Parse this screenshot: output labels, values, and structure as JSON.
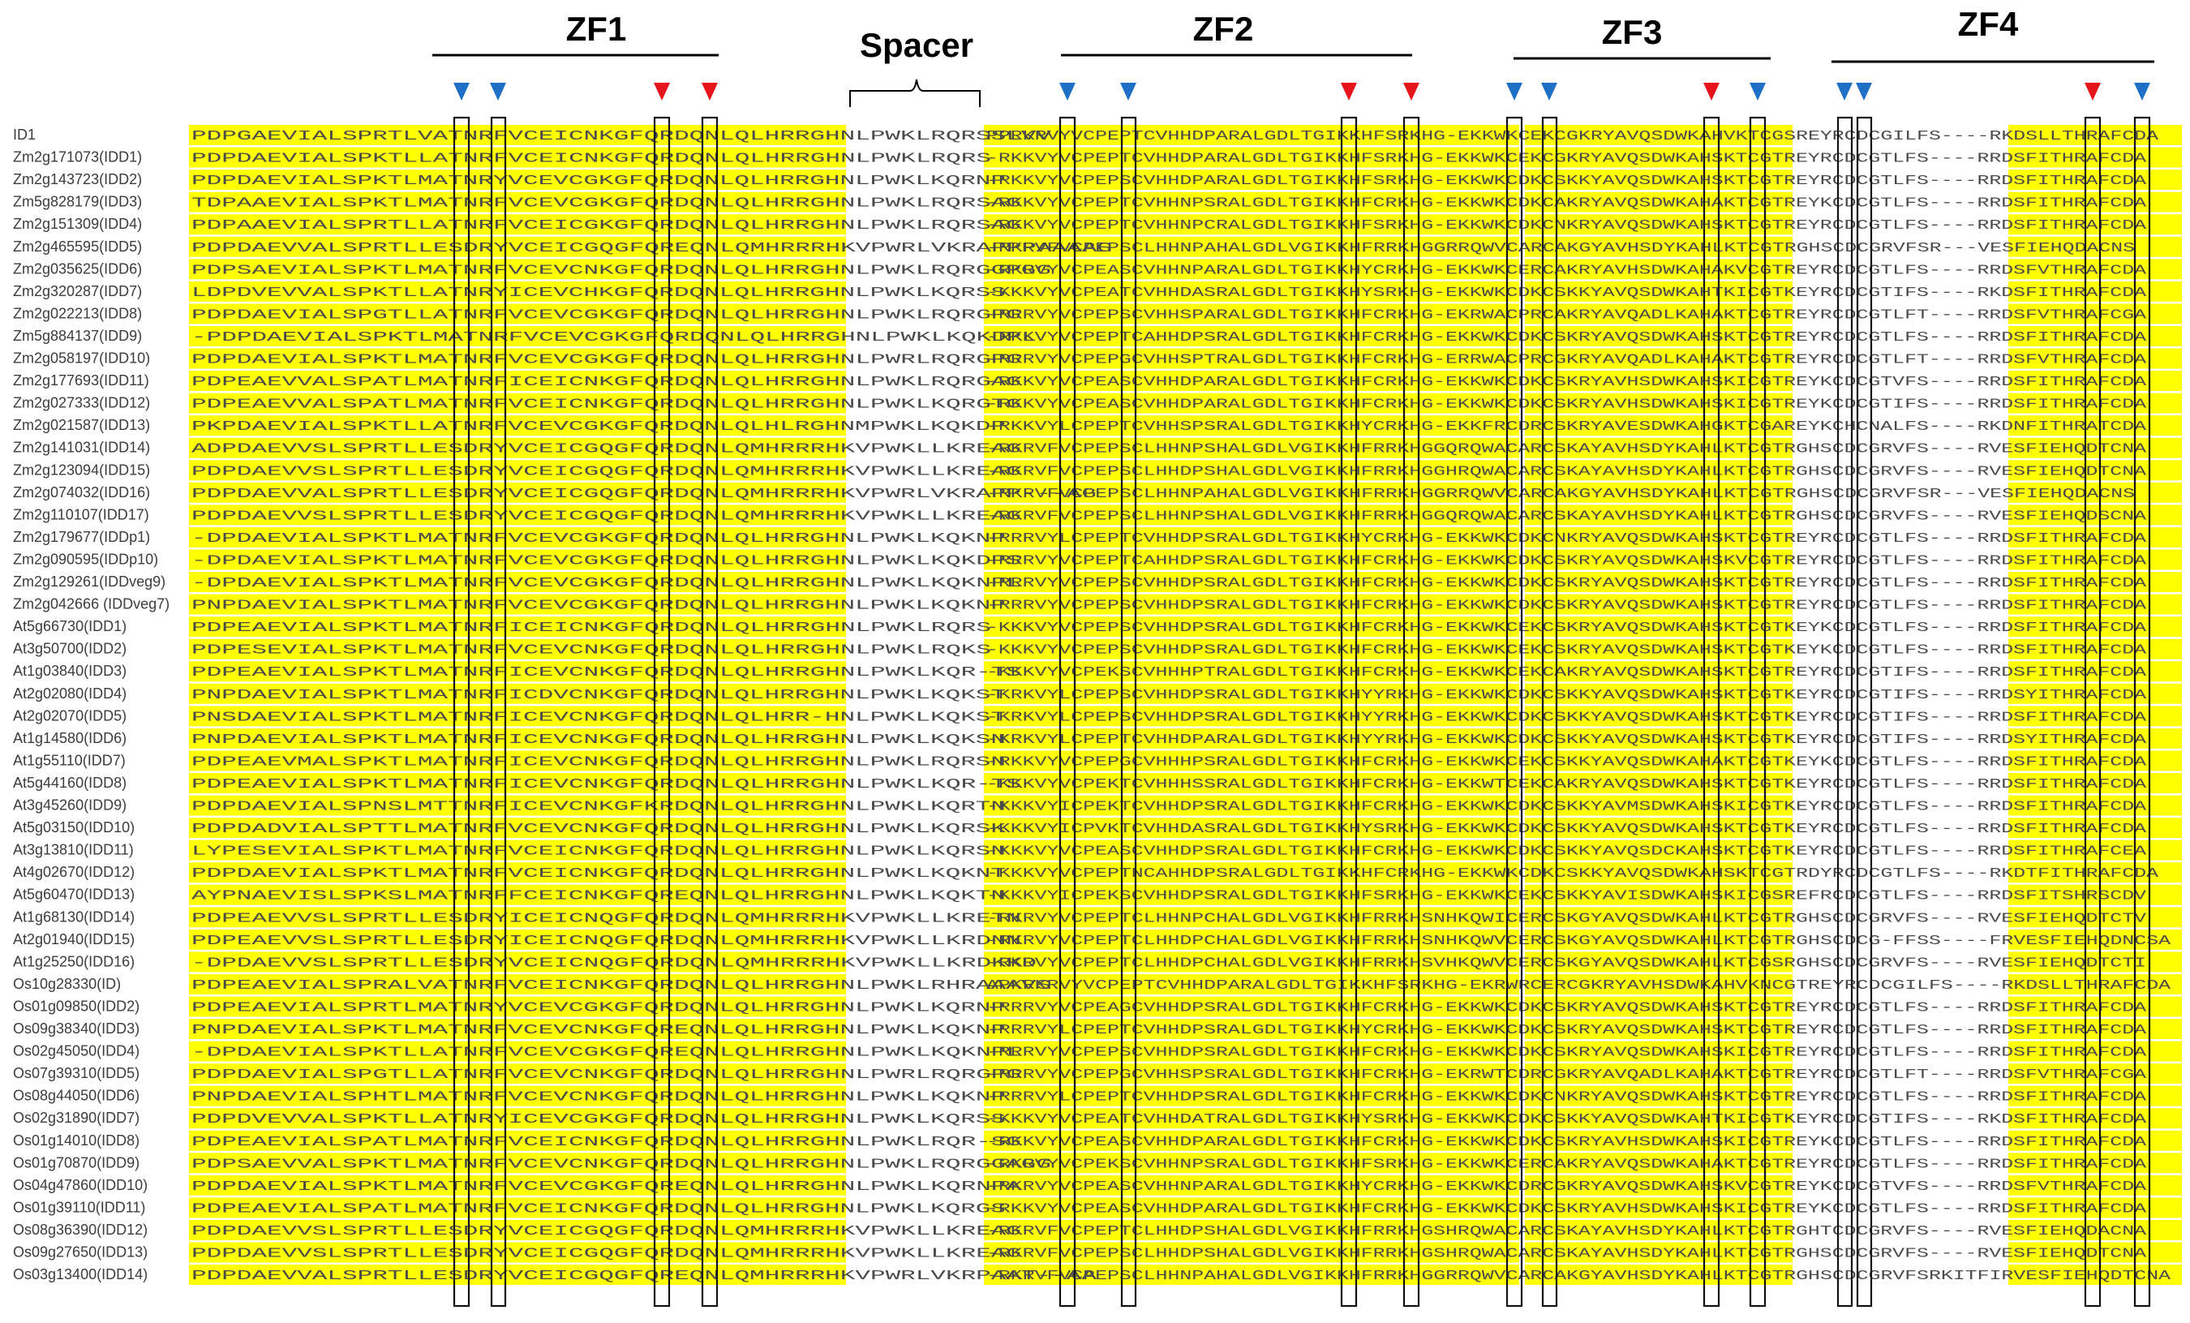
{
  "regions": [
    {
      "name": "ZF1"
    },
    {
      "name": "ZF2"
    },
    {
      "name": "ZF3"
    },
    {
      "name": "ZF4"
    }
  ],
  "spacer_label": "Spacer",
  "colors": {
    "highlight": "#ffff00",
    "arrow_blue": "#1f6fc5",
    "arrow_red": "#e8141b",
    "box": "#111111",
    "text": "#4a4a4a"
  },
  "arrow_colors": [
    "blue",
    "blue",
    "red",
    "red",
    "blue",
    "blue",
    "red",
    "red",
    "blue",
    "blue",
    "red",
    "blue",
    "blue",
    "blue",
    "red",
    "blue"
  ],
  "sequences": [
    {
      "id": "ID1",
      "seg1": "PDPGAEVIALSPRTLVATNRFVCEICNKGFQRDQNLQLHRRGHNLPWKLRQRSSLVV",
      "seg2": "PPRKRVYVCPEPTCVHHDPARALGDLTGIKKHFSRKHG-EKKWKCEKCGKRYAVQSDWKAHVKTCGSREYRCDCGILFS----RKDSLLTHRAFCDA"
    },
    {
      "id": "Zm2g171073(IDD1)",
      "seg1": "PDPDAEVIALSPKTLLATNRFVCEICNKGFQRDQNLQLHRRGHNLPWKLRQRS",
      "seg2": "-RKKVYVCPEPTCVHHDPARALGDLTGIKKHFSRKHG-EKKWKCEKCGKRYAVQSDWKAHSKTCGTREYRCDCGTLFS----RRDSFITHRAFCDA"
    },
    {
      "id": "Zm2g143723(IDD2)",
      "seg1": "PDPDAEVIALSPKTLMATNRYVCEVCGKGFQRDQNLQLHRRGHNLPWKLKQRNP",
      "seg2": "-RKKVYVCPEPSCVHHDPARALGDLTGIKKHFSRKHG-EKKWKCDKCSKKYAVQSDWKAHSKTCGTREYRCDCGTLFS----RRDSFITHRAFCDA"
    },
    {
      "id": "Zm5g828179(IDD3)",
      "seg1": "TDPAAEVIALSPKTLMATNRFVCEVCGKGFQRDQNLQLHRRGHNLPWKLRQRSAG",
      "seg2": "-RKKVYVCPEPTCVHHNPSRALGDLTGIKKHFCRKHG-EKKWKCDKCAKRYAVQSDWKAHAKTCGTREYKCDCGTLFS----RRDSFITHRAFCDA"
    },
    {
      "id": "Zm2g151309(IDD4)",
      "seg1": "PDPAAEVIALSPRTLLATNRFVCEICGKGFQRDQNLQLHRRGHNLPWKLRQRSAG",
      "seg2": "-RKKVYVCPEPTCVHHNPCRALGDLTGIKKHFSRKHG-EKKWKCDKCNKRYAVQSDWKAHSKTCGTREYRCDCGTLFS----RRDSFITHRAFCDA"
    },
    {
      "id": "Zm2g465595(IDD5)",
      "seg1": "PDPDAEVVALSPRTLLESDRYVCEICGQGFQREQNLQMHRRRHKVPWRLVKRAPPPAAAAG",
      "seg2": "-RKRVFVCPEPSCLHHNPAHALGDLVGIKKHFRRKHGGRRQWVCARCAKGYAVHSDYKAHLKTCGTRGHSCDCGRVFSR---VESFIEHQDACNS"
    },
    {
      "id": "Zm2g035625(IDD6)",
      "seg1": "PDPSAEVIALSPKTLMATNRFVCEVCNKGFQRDQNLQLHRRGHNLPWKLRQRGGPGG",
      "seg2": "-RKRVYVCPEASCVHHNPARALGDLTGIKKHYCRKHG-EKKWKCERCAKRYAVHSDWKAHAKVCGTREYRCDCGTLFS----RRDSFVTHRAFCDA"
    },
    {
      "id": "Zm2g320287(IDD7)",
      "seg1": "LDPDVEVVALSPKTLLATNRYICEVCHKGFQRDQNLQLHRRGHNLPWKLKQRSS",
      "seg2": "-KKKVYVCPEATCVHHDASRALGDLTGIKKHYSRKHG-EKKWKCDKCSKKYAVQSDWKAHTKICGTKEYRCDCGTIFS----RKDSFITHRAFCDA"
    },
    {
      "id": "Zm2g022213(IDD8)",
      "seg1": "PDPDAEVIALSPGTLLATNRFVCEVCGKGFQRDQNLQLHRRGHNLPWKLRQRGPG",
      "seg2": "-RRRVYVCPEPSCVHHSPARALGDLTGIKKHFCRKHG-EKRWACPRCAKRYAVQADLKAHAKTCGTREYRCDCGTLFT----RRDSFVTHRAFCGA"
    },
    {
      "id": "Zm5g884137(IDD9)",
      "seg1": "-PDPDAEVIALSPKTLMATNRFVCEVCGKGFQRDQNLQLHRRGHNLPWKLKQKDPL",
      "seg2": "-RKKVYVCPEPTCAHHDPSRALGDLTGIKKHFCRKHG-EKKWKCDKCSKRYAVQSDWKAHSKTCGTREYRCDCGTLFS----RRDSFITHRAFCDA"
    },
    {
      "id": "Zm2g058197(IDD10)",
      "seg1": "PDPDAEVIALSPKTLMATNRFVCEVCGKGFQRDQNLQLHRRGHNLPWRLRQRGPG",
      "seg2": "-RRRVYVCPEPGCVHHSPTRALGDLTGIKKHFCRKHG-ERRWACPRCGKRYAVQADLKAHAKTCGTREYRCDCGTLFT----RRDSFVTHRAFCDA"
    },
    {
      "id": "Zm2g177693(IDD11)",
      "seg1": "PDPEAEVVALSPATLMATNRFICEICNKGFQRDQNLQLHRRGHNLPWKLRQRGAG",
      "seg2": "-RKKVYVCPEASCVHHDPARALGDLTGIKKHFCRKHG-EKKWKCDKCSKRYAVHSDWKAHSKICGTREYKCDCGTVFS----RRDSFITHRAFCDA"
    },
    {
      "id": "Zm2g027333(IDD12)",
      "seg1": "PDPEAEVVALSPATLMATNRFVCEICNKGFQRDQNLQLHRRGHNLPWKLKQRGTG",
      "seg2": "-RKKVYVCPEASCVHHDPARALGDLTGIKKHFCRKHG-EKKWKCDKCSKRYAVHSDWKAHSKICGTREYKCDCGTIFS----RRDSFITHRAFCDA"
    },
    {
      "id": "Zm2g021587(IDD13)",
      "seg1": "PKPDAEVIALSPKTLLATNRFVCEVCGKGFQRDQNLQLHLRGHNMPWKLKQKDP",
      "seg2": "-RKKVYLCPEPTCVHHSPSRALGDLTGIKKHYCRKHG-EKKFRCDRCSKRYAVESDWKAHGKTCGAREYKCHCNALFS----RKDNFITHRATCDA"
    },
    {
      "id": "Zm2g141031(IDD14)",
      "seg1": "ADPDAEVVSLSPRTLLESDRYVCEICGQGFQRDQNLQMHRRRHKVPWKLLKREAG",
      "seg2": "-RKRVFVCPEPSCLHHNPSHALGDLVGIKKHFRRKHGGQRQWACARCSKAYAVHSDYKAHLKTCGTRGHSCDCGRVFS----RVESFIEHQDTCNA"
    },
    {
      "id": "Zm2g123094(IDD15)",
      "seg1": "PDPDAEVVSLSPRTLLESDRYVCEICGQGFQRDQNLQMHRRRHKVPWKLLKREAG",
      "seg2": "-RKRVFVCPEPSCLHHDPSHALGDLVGIKKHFRRKHGGHRQWACARCSKAYAVHSDYKAHLKTCGTRGHSCDCGRVFS----RVESFIEHQDTCNA"
    },
    {
      "id": "Zm2g074032(IDD16)",
      "seg1": "PDPDAEVVALSPRTLLESDRYVCEICGQGFQRDQNLQMHRRRHKVPWRLVKRAPP---AG",
      "seg2": "-RKRVFVCPEPSCLHHNPAHALGDLVGIKKHFRRKHGGRRQWVCARCAKGYAVHSDYKAHLKTCGTRGHSCDCGRVFSR---VESFIEHQDACNS"
    },
    {
      "id": "Zm2g110107(IDD17)",
      "seg1": "PDPDAEVVSLSPRTLLESDRYVCEICGQGFQRDQNLQMHRRRHKVPWKLLKREAG",
      "seg2": "-RKRVFVCPEPSCLHHNPSHALGDLVGIKKHFRRKHGGQRQWACARCSKAYAVHSDYKAHLKTCGTRGHSCDCGRVFS----RVESFIEHQDSCNA"
    },
    {
      "id": "Zm2g179677(IDDp1)",
      "seg1": "-DPDAEVIALSPKTLMATNRFVCEVCGKGFQRDQNLQLHRRGHNLPWKLKQKNP",
      "seg2": "-RRRVYLCPEPTCVHHDPSRALGDLTGIKKHYCRKHG-EKKWKCDKCNKRYAVQSDWKAHSKTCGTREYRCDCGTLFS----RRDSFITHRAFCDA"
    },
    {
      "id": "Zm2g090595(IDDp10)",
      "seg1": "-DPDAEVIALSPKTLMATNRFVCEVCGKGFQRDQNLQLHRRGHNLPWKLKQKDPS",
      "seg2": "-RRRVYVCPEPTCAHHDPSRALGDLTGIKKHFCRKHG-EKKWKCDKCSKRYAVQSDWKAHSKVCGTREYRCDCGTLFS----RRDSFITHRAFCDA"
    },
    {
      "id": "Zm2g129261(IDDveg9)",
      "seg1": "-DPDAEVIALSPKTLMATNRFVCEVCGKGFQRDQNLQLHRRGHNLPWKLKQKNPL",
      "seg2": "-RRRVYVCPEPSCVHHDPSRALGDLTGIKKHFCRKHG-EKKWKCDKCSKRYAVQSDWKAHSKTCGTREYRCDCGTLFS----RRDSFITHRAFCDA"
    },
    {
      "id": "Zm2g042666 (IDDveg7)",
      "seg1": "PNPDAEVIALSPKTLMATNRFVCEVCGKGFQRDQNLQLHRRGHNLPWKLKQKNP",
      "seg2": "-RRRVYVCPEPSCVHHDPSRALGDLTGIKKHFCRKHG-EKKWKCDKCSKRYAVQSDWKAHSKTCGTREYRCDCGTLFS----RRDSFITHRAFCDA"
    },
    {
      "id": "At5g66730(IDD1)",
      "seg1": "PDPEAEVIALSPKTLMATNRFICEICNKGFQRDQNLQLHRRGHNLPWKLRQRS",
      "seg2": "-KKKVYVCPEPSCVHHDPSRALGDLTGIKKHFCRKHG-EKKWKCEKCSKRYAVQSDWKAHSKTCGTKEYKCDCGTLFS----RRDSFITHRAFCDA"
    },
    {
      "id": "At3g50700(IDD2)",
      "seg1": "PDPESEVIALSPKTLMATNRFVCEVCNKGFQRDQNLQLHRRGHNLPWKLRQKS",
      "seg2": "-KKKVYVCPEPSCVHHDPSRALGDLTGIKKHFCRKHG-EKKWKCEKCSKRYAVQSDWKAHSKTCGTKEYKCDCGTLFS----RRDSFITHRAFCDA"
    },
    {
      "id": "At1g03840(IDD3)",
      "seg1": "PDPEAEVIALSPKTLMATNRFICEVCNKGFQRDQNLQLHRRGHNLPWKLKQR-TS",
      "seg2": "-KKKVYVCPEKSCVHHHPTRALGDLTGIKKHFCRKHG-EKKWKCEKCAKRYAVQSDWKAHSKTCGTREYRCDCGTIFS----RRDSFITHRAFCDA"
    },
    {
      "id": "At2g02080(IDD4)",
      "seg1": "PNPDAEVIALSPKTLMATNRFICDVCNKGFQRDQNLQLHRRGHNLPWKLKQKST",
      "seg2": "-KRKVYLCPEPSCVHHDPSRALGDLTGIKKHYYRKHG-EKKWKCDKCSKKYAVQSDWKAHSKTCGTKEYRCDCGTIFS----RRDSYITHRAFCDA"
    },
    {
      "id": "At2g02070(IDD5)",
      "seg1": "PNSDAEVIALSPKTLMATNRFICEVCNKGFQRDQNLQLHRR-HNLPWKLKQKST",
      "seg2": "-KRKVYLCPEPSCVHHDPSRALGDLTGIKKHYYRKHG-EKKWKCDKCSKKYAVQSDWKAHSKTCGTKEYRCDCGTIFS----RRDSFITHRAFCDA"
    },
    {
      "id": "At1g14580(IDD6)",
      "seg1": "PNPDAEVIALSPKTLMATNRFICEVCNKGFQRDQNLQLHRRGHNLPWKLKQKSN",
      "seg2": "-KRKVYLCPEPTCVHHDPARALGDLTGIKKHYYRKHG-EKKWKCDKCSKKYAVQSDWKAHSKTCGTKEYRCDCGTIFS----RRDSYITHRAFCDA"
    },
    {
      "id": "At1g55110(IDD7)",
      "seg1": "PDPEAEVMALSPKTLMATNRFICEVCNKGFQRDQNLQLHRRGHNLPWKLRQRSN",
      "seg2": "-RKKVYVCPEPGCVHHHPSRALGDLTGIKKHFCRKHG-EKKWKCEKCSKKYAVQSDWKAHAKTCGTKEYKCDCGTLFS----RRDSFITHRAFCDA"
    },
    {
      "id": "At5g44160(IDD8)",
      "seg1": "PDPEAEVIALSPKTLMATNRFICEVCNKGFQRDQNLQLHRRGHNLPWKLKQR-TS",
      "seg2": "-KKKVYVCPEKTCVHHHSSRALGDLTGIKKHFCRKHG-EKKWTCEKCAKRYAVQSDWKAHSKTCGTKEYRCDCGTLFS----RRDSFITHRAFCDA"
    },
    {
      "id": "At3g45260(IDD9)",
      "seg1": "PDPDAEVIALSPNSLMTTNRFICEVCNKGFKRDQNLQLHRRGHNLPWKLKQRTN",
      "seg2": "-KKKVYICPEKTCVHHDPSRALGDLTGIKKHFCRKHG-EKKWKCDKCSKKYAVMSDWKAHSKICGTKEYRCDCGTLFS----RRDSFITHRAFCDA"
    },
    {
      "id": "At5g03150(IDD10)",
      "seg1": "PDPDADVIALSPTTLMATNRFVCEVCNKGFQRDQNLQLHRRGHNLPWKLKQRSK",
      "seg2": "-KKKVYICPVKTCVHHDASRALGDLTGIKKHYSRKHG-EKKWKCDKCSKKYAVQSDWKAHSKTCGTKEYRCDCGTLFS----RRDSFITHRAFCDA"
    },
    {
      "id": "At3g13810(IDD11)",
      "seg1": "LYPESEVIALSPKTLMATNRFVCEICNKGFQRDQNLQLHRRGHNLPWKLKQRSN",
      "seg2": "-KKKVYVCPEASCVHHDPSRALGDLTGIKKHFCRKHG-EKKWKCDKCSKKYAVQSDCKAHSKTCGTKEYRCDCGTLFS----RRDSFITHRAFCEA"
    },
    {
      "id": "At4g02670(IDD12)",
      "seg1": "PDPDAEVIALSPKTLMATNRFVCEICNKGFQRDQNLQLHRRGHNLPWKLKQKNT",
      "seg2": "-KKKVYVCPEPTNCAHHDPSRALGDLTGIKKHFCRKHG-EKKWKCDKCSKKYAVQSDWKAHSKTCGTRDYRCDCGTLFS----RKDTFITHRAFCDA"
    },
    {
      "id": "At5g60470(IDD13)",
      "seg1": "AYPNAEVISLSPKSLMATNRFFCEICNKGFQREQNLQLHRRGHNLPWKLKQKTN",
      "seg2": "-KKKVYICPEKSCVHHDPSRALGDLTGIKKHFSRKHG-EKKWKCEKCSKKYAVISDWKAHSKICGSREFRCDCGTLFS----RRDSFITSHRSCDV"
    },
    {
      "id": "At1g68130(IDD14)",
      "seg1": "PDPEAEVVSLSPRTLLESDRYICEICNQGFQRDQNLQMHRRRHKVPWKLLKRETN",
      "seg2": "-RKRVYVCPEPTCLHHNPCHALGDLVGIKKHFRRKHSNHKQWICERCSKGYAVQSDWKAHLKTCGTRGHSCDCGRVFS----RVESFIEHQDTCTV"
    },
    {
      "id": "At2g01940(IDD15)",
      "seg1": "PDPEAEVVSLSPRTLLESDRYICEICNQGFQRDQNLQMHRRRHKVPWKLLKRDNN",
      "seg2": "-RKRVYVCPEPTCLHHDPCHALGDLVGIKKHFRRKHSNHKQWVCERCSKGYAVQSDWKAHLKTCGTRGHSCDCG-FFSS----FRVESFIEHQDNCSA"
    },
    {
      "id": "At1g25250(IDD16)",
      "seg1": "-DPDAEVVSLSPRTLLESDRYVCEICNQGFQRDQNLQMHRRRHKVPWKLLKRDKKD",
      "seg2": "-RKRVYVCPEPTCLHHDPCHALGDLVGIKKHFRRKHSVHKQWVCERCSKGYAVQSDWKAHLKTCGSRGHSCDCGRVFS----RVESFIEHQDTCTI"
    },
    {
      "id": "Os10g28330(ID)",
      "seg1": "PDPEAEVIALSPRALVATNRFVCEICNKGFQRDQNLQLHRRGHNLPWKLRHRAAAVS",
      "seg2": "APKRKRVYVCPEPTCVHHDPARALGDLTGIKKHFSRKHG-EKRWRCERCGKRYAVHSDWKAHVKNCGTREYRCDCGILFS----RKDSLLTHRAFCDA"
    },
    {
      "id": "Os01g09850(IDD2)",
      "seg1": "PDPEAEVIALSPRTLMATNRYVCEVCGKGFQRDQNLQLHRRGHNLPWKLKQRNP",
      "seg2": "-RRRVYVCPEAGCVHHDPSRALGDLTGIKKHFCRKHG-EKKWKCDKCSKRYAVQSDWKAHSKTCGTREYRCDCGTLFS----RRDSFITHRAFCDA"
    },
    {
      "id": "Os09g38340(IDD3)",
      "seg1": "PNPDAEVIALSPKTLMATNRFVCEVCNKGFQREQNLQLHRRGHNLPWKLKQKNP",
      "seg2": "-RRRVYLCPEPTCVHHDPSRALGDLTGIKKHYCRKHG-EKKWKCDKCSKRYAVQSDWKAHSKTCGTREYRCDCGTLFS----RRDSFITHRAFCDA"
    },
    {
      "id": "Os02g45050(IDD4)",
      "seg1": "-DPDAEVIALSPKTLLATNRFVCEVCGKGFQREQNLQLHRRGHNLPWKLKQKNPL",
      "seg2": "-RRRVYVCPEPSCVHHDPSRALGDLTGIKKHFCRKHG-EKKWKCDKCSKRYAVQSDWKAHSKICGTREYRCDCGTLFS----RRDSFITHRAFCDA"
    },
    {
      "id": "Os07g39310(IDD5)",
      "seg1": "PDPDAEVIALSPGTLLATNRFVCEVCNKGFQRDQNLQLHRRGHNLPWRLRQRGPG",
      "seg2": "-RRRVYVCPEPGCVHHSPSRALGDLTGIKKHFCRKHG-EKRWTCDRCGKRYAVQADLKAHAKTCGTREYRCDCGTLFT----RRDSFVTHRAFCGA"
    },
    {
      "id": "Os08g44050(IDD6)",
      "seg1": "PNPDAEVIALSPHTLMATNRFVCEVCNKGFQRDQNLQLHRRGHNLPWKLKQKNP",
      "seg2": "-RRRVYLCPEPTCVHHDPSRALGDLTGIKKHFCRKHG-EKKWKCDKCNKRYAVQSDWKAHSKTCGTREYRCDCGTLFS----RRDSFITHRAFCDA"
    },
    {
      "id": "Os02g31890(IDD7)",
      "seg1": "PDPDVEVVALSPKTLLATNRYICEVCGKGFQRDQNLQLHRRGHNLPWKLKQRSS",
      "seg2": "-KKKVYVCPEATCVHHDATRALGDLTGIKKHYSRKHG-EKKWKCDKCSKKYAVQSDWKAHTKICGTKEYRCDCGTIFS----RKDSFITHRAFCDA"
    },
    {
      "id": "Os01g14010(IDD8)",
      "seg1": "PDPEAEVIALSPATLMATNRFVCEICNKGFQRDQNLQLHRRGHNLPWKLRQR-SG",
      "seg2": "-RKKVYVCPEASCVHHDPARALGDLTGIKKHFCRKHG-EKKWKCDKCSKRYAVHSDWKAHSKICGTREYKCDCGTLFS----RRDSFITHRAFCDA"
    },
    {
      "id": "Os01g70870(IDD9)",
      "seg1": "PDPSAEVVALSPKTLMATNRFVCEVCNKGFQRDQNLQLHRRGHNLPWKLRQRGGAGG",
      "seg2": "-RKRVYVCPEKSCVHHNPSRALGDLTGIKKHFSRKHG-EKKWKCERCAKRYAVQSDWKAHAKTCGTREYRCDCGTLFS----RRDSFITHRAFCDA"
    },
    {
      "id": "Os04g47860(IDD10)",
      "seg1": "PDPDAEVIALSPKTLMATNRFVCEVCGKGFQREQNLQLHRRGHNLPWKLKQRNPA",
      "seg2": "-RKRVYVCPEASCVHHNPARALGDLTGIKKHYCRKHG-EKKWKCDRCGKRYAVQSDWKAHSKVCGTREYKCDCGTVFS----RRDSFVTHRAFCDA"
    },
    {
      "id": "Os01g39110(IDD11)",
      "seg1": "PDPEAEVIALSPATLMATNRFVCEICNKGFQRDQNLQLHRRGHNLPWKLKQRGS",
      "seg2": "-RKKVYVCPEASCVHHDPARALGDLTGIKKHFCRKHG-EKKWKCDKCSKRYAVHSDWKAHSKICGTREYKCDCGTLFS----RRDSFITHRAFCDA"
    },
    {
      "id": "Os08g36390(IDD12)",
      "seg1": "PDPDAEVVSLSPRTLLESDRYVCEICGQGFQRDQNLQMHRRRHKVPWKLLKREAG",
      "seg2": "-RKRVFVCPEPTCLHHDPSHALGDLVGIKKHFRRKHGSHRQWACARCSKAYAVHSDYKAHLKTCGTRGHTCDCGRVFS----RVESFIEHQDACNA"
    },
    {
      "id": "Os09g27650(IDD13)",
      "seg1": "PDPDAEVVSLSPRTLLESDRYVCEICGQGFQRDQNLQMHRRRHKVPWKLLKREAG",
      "seg2": "-RKRVFVCPEPSCLHHDPSHALGDLVGIKKHFRRKHGSHRQWACARCSKAYAVHSDYKAHLKTCGTRGHSCDCGRVFS----RVESFIEHQDTCNA"
    },
    {
      "id": "Os03g13400(IDD14)",
      "seg1": "PDPDAEVVALSPRTLLESDRYVCEICGQGFQREQNLQMHRRRHKVPWRLVKRPAAT--AA",
      "seg2": "-RKRVFVCPEPSCLHHNPAHALGDLVGIKKHFRRKHGGRRQWVCARCAKGYAVHSDYKAHLKTCGTRGHSCDCGRVFSRKITFIRVESFIEHQDTCNA"
    }
  ]
}
